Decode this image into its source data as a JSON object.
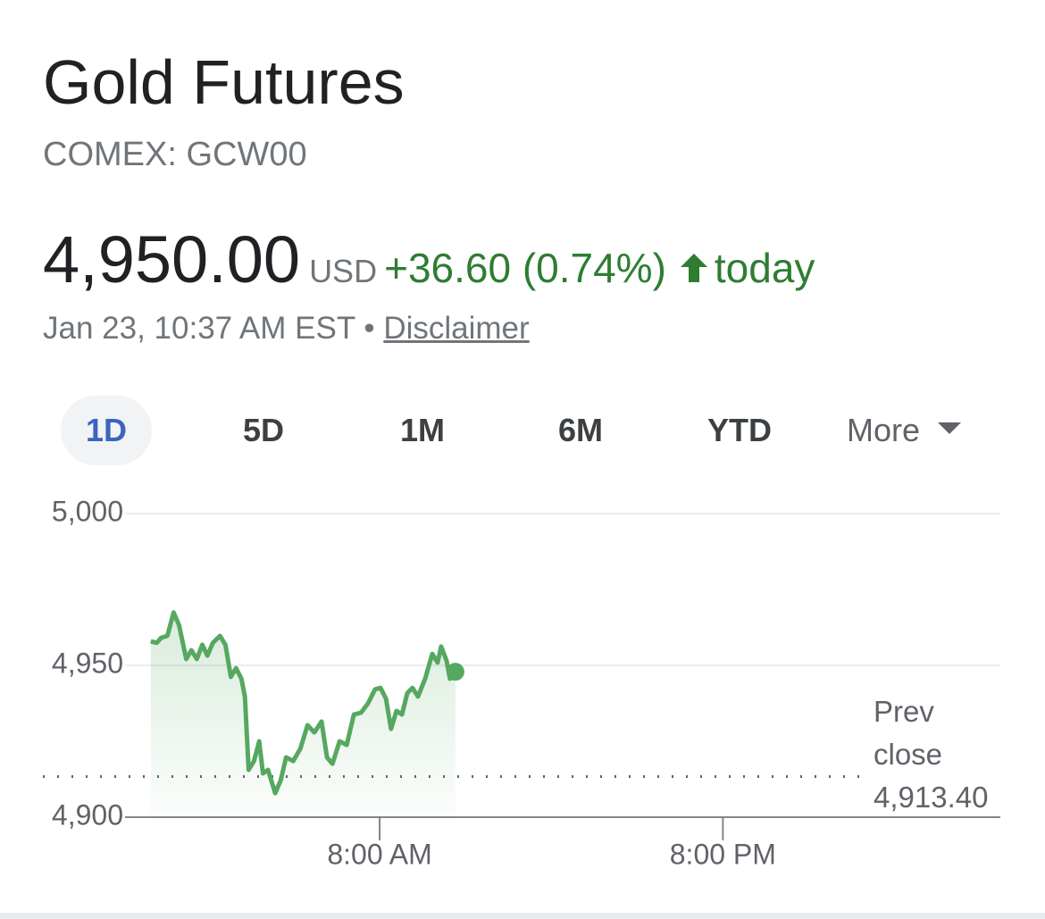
{
  "header": {
    "title": "Gold Futures",
    "ticker": "COMEX: GCW00",
    "price": "4,950.00",
    "currency": "USD",
    "change": "+36.60 (0.74%)",
    "period": "today",
    "timestamp": "Jan 23, 10:37 AM EST",
    "separator": "•",
    "disclaimer": "Disclaimer"
  },
  "tabs": {
    "items": [
      "1D",
      "5D",
      "1M",
      "6M",
      "YTD",
      "More"
    ],
    "selected_index": 0
  },
  "chart_data": {
    "type": "line",
    "x": [
      0.0,
      0.21,
      0.36,
      0.58,
      0.8,
      0.99,
      1.24,
      1.42,
      1.61,
      1.8,
      1.98,
      2.17,
      2.42,
      2.61,
      2.8,
      2.98,
      3.17,
      3.29,
      3.42,
      3.61,
      3.79,
      3.92,
      4.1,
      4.35,
      4.54,
      4.73,
      4.98,
      5.23,
      5.48,
      5.72,
      5.97,
      6.16,
      6.35,
      6.6,
      6.85,
      7.1,
      7.35,
      7.59,
      7.84,
      8.03,
      8.22,
      8.4,
      8.59,
      8.78,
      8.97,
      9.15,
      9.34,
      9.59,
      9.84,
      10.03,
      10.15,
      10.34,
      10.46,
      10.65
    ],
    "series": [
      {
        "color": "#56a860",
        "values": [
          4957.9,
          4957.4,
          4959.1,
          4959.7,
          4967.4,
          4963.2,
          4952.1,
          4955.0,
          4952.1,
          4956.8,
          4953.2,
          4957.4,
          4959.7,
          4956.8,
          4946.2,
          4949.1,
          4945.6,
          4939.7,
          4915.6,
          4918.5,
          4925.0,
          4914.4,
          4915.6,
          4907.9,
          4912.1,
          4919.7,
          4918.5,
          4922.6,
          4930.3,
          4927.9,
          4931.5,
          4919.7,
          4917.6,
          4925.0,
          4923.8,
          4933.8,
          4934.4,
          4937.4,
          4942.1,
          4942.6,
          4939.1,
          4929.1,
          4935.0,
          4933.8,
          4940.9,
          4942.6,
          4939.7,
          4945.6,
          4953.8,
          4950.9,
          4956.2,
          4951.5,
          4945.6,
          4947.9
        ]
      }
    ],
    "xlim": [
      -0.9,
      29.7
    ],
    "xticks": [
      {
        "value": 8,
        "label": "8:00 AM"
      },
      {
        "value": 20,
        "label": "8:00 PM"
      }
    ],
    "ylim": [
      4900,
      5000
    ],
    "yticks": [
      {
        "value": 4900,
        "label": "4,900"
      },
      {
        "value": 4950,
        "label": "4,950"
      },
      {
        "value": 5000,
        "label": "5,000"
      }
    ],
    "grid": true,
    "prev_close_text": "Prev close",
    "prev_close": {
      "value": 4913.4,
      "label": "4,913.40"
    }
  }
}
